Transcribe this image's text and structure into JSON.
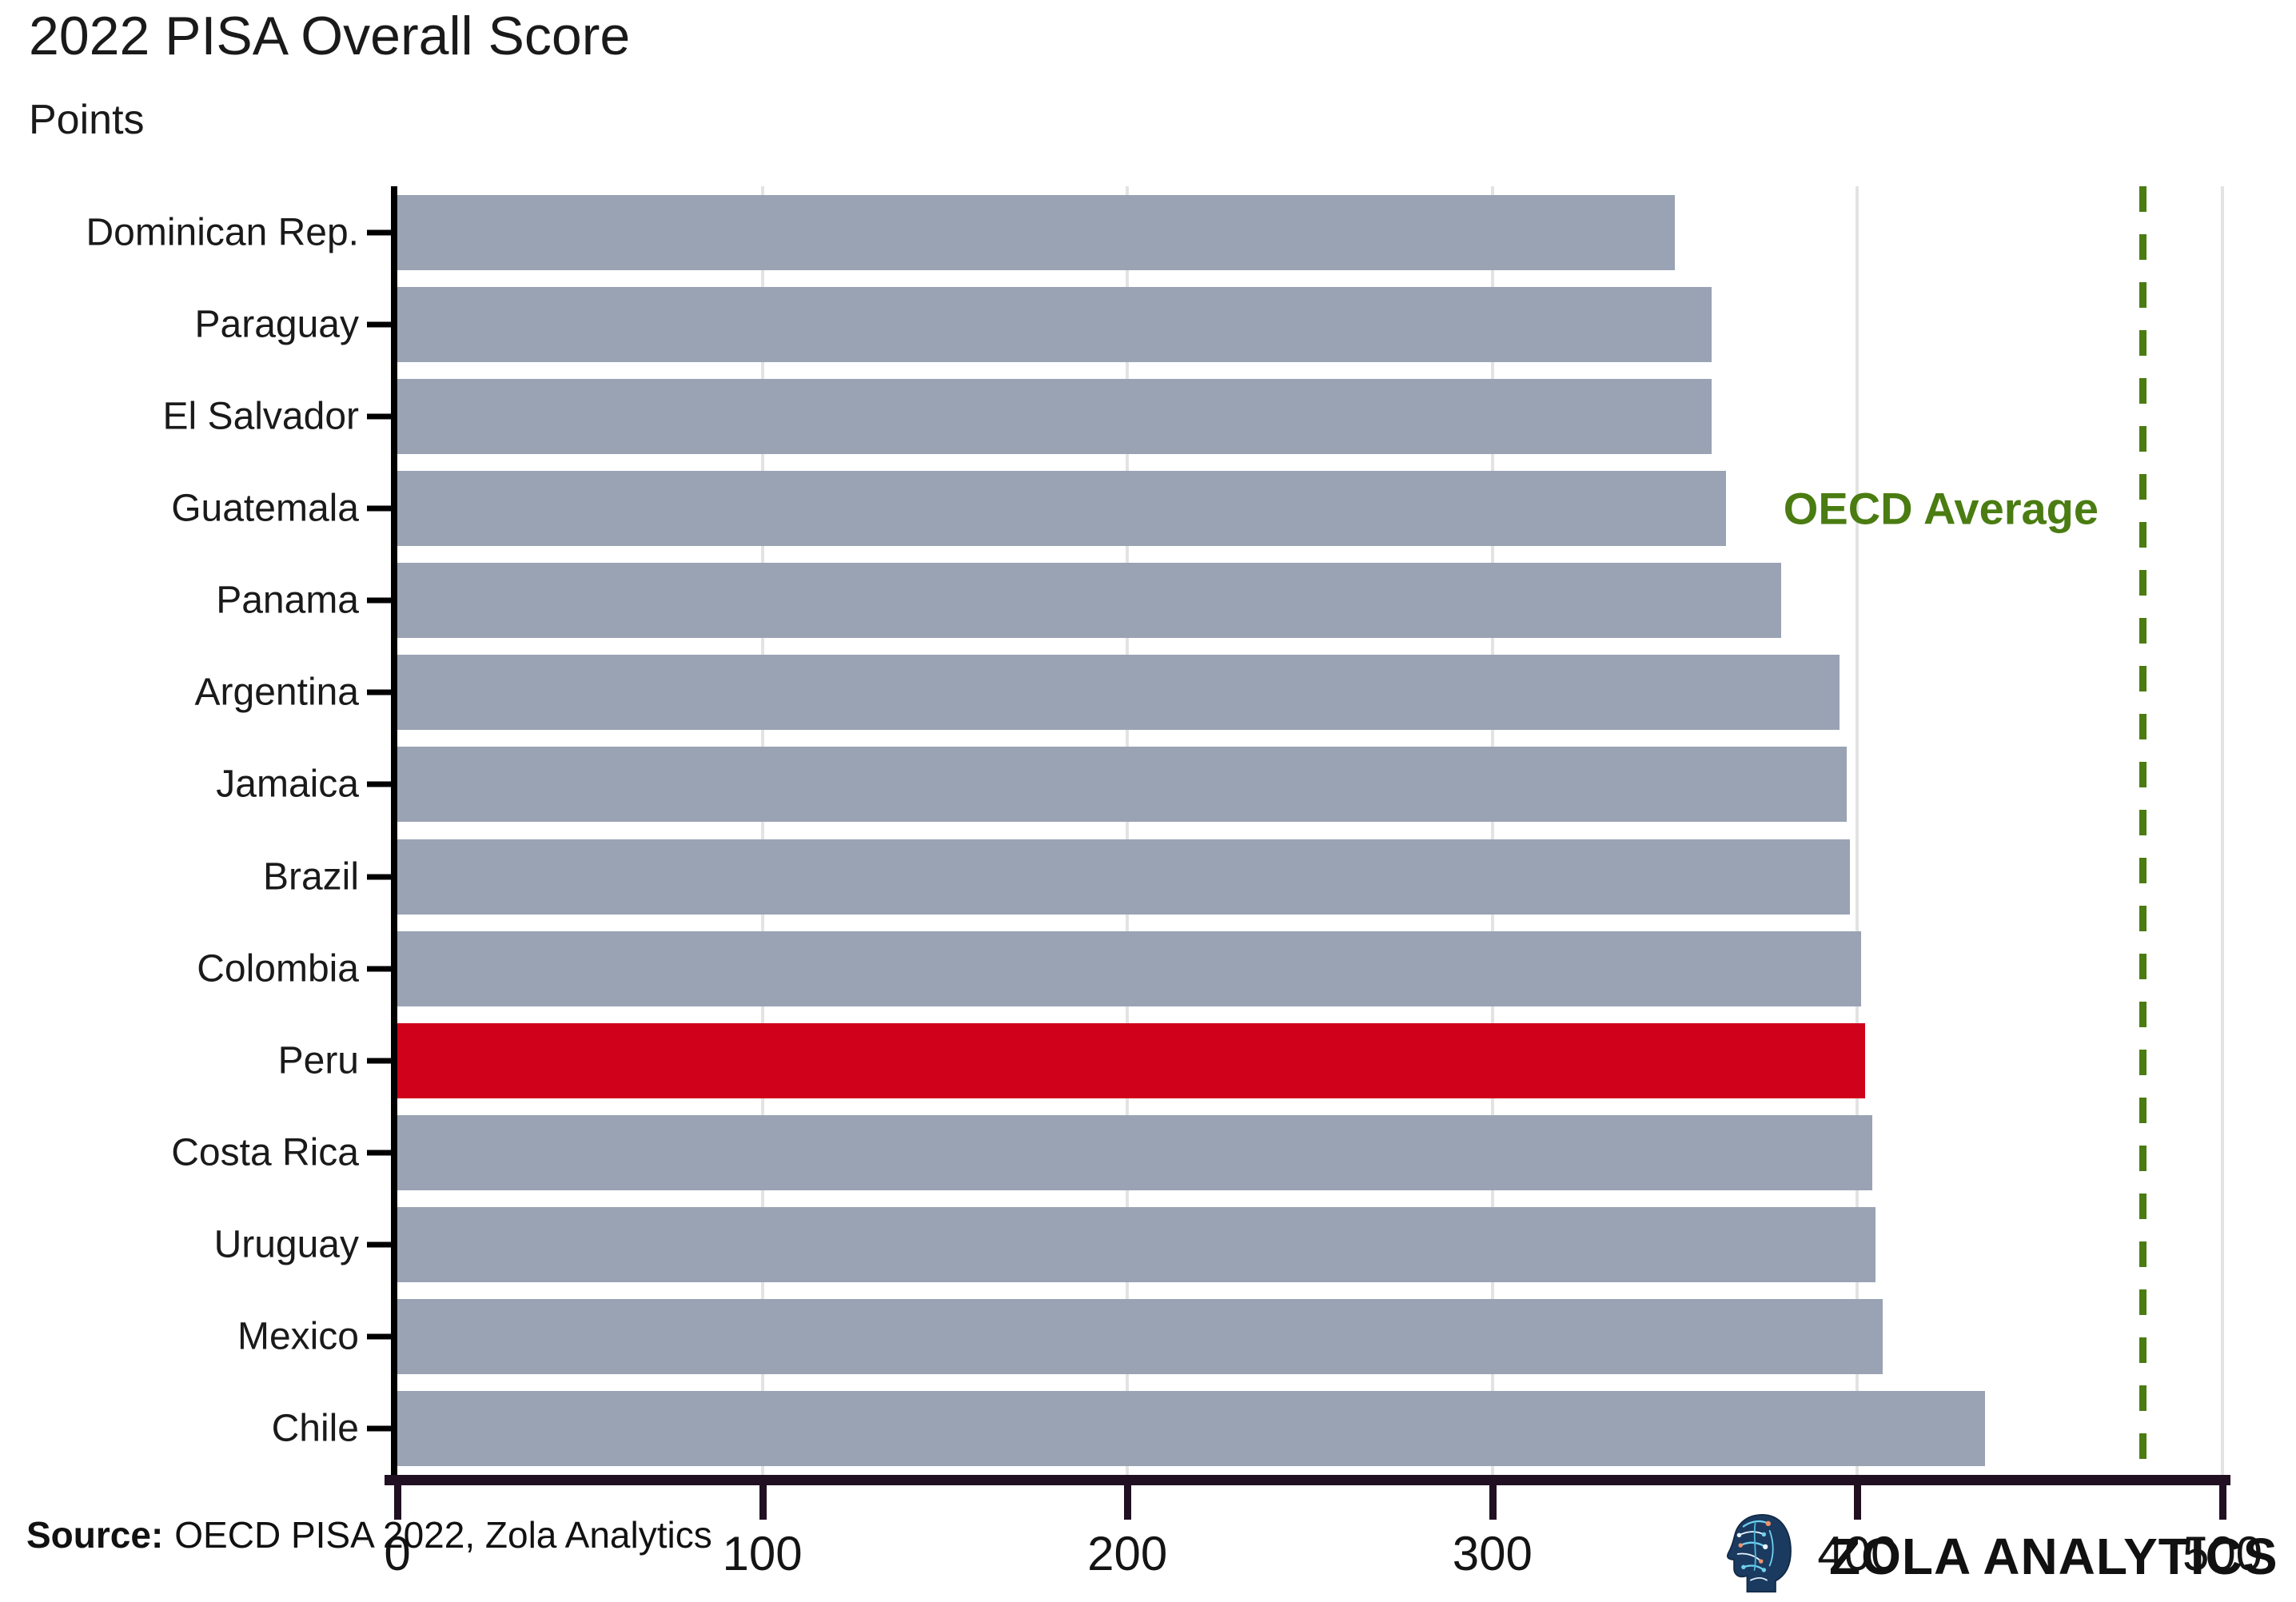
{
  "title": "2022 PISA Overall Score",
  "subtitle": "Points",
  "source": {
    "label": "Source:",
    "text": "OECD PISA 2022, Zola Analytics"
  },
  "brand": {
    "name": "ZOLA ANALYTICS",
    "logo": "circuit-head-icon"
  },
  "chart_data": {
    "type": "bar",
    "orientation": "horizontal",
    "title": "2022 PISA Overall Score",
    "xlabel": "",
    "ylabel": "Points",
    "categories": [
      "Dominican Rep.",
      "Paraguay",
      "El Salvador",
      "Guatemala",
      "Panama",
      "Argentina",
      "Jamaica",
      "Brazil",
      "Colombia",
      "Peru",
      "Costa Rica",
      "Uruguay",
      "Mexico",
      "Chile"
    ],
    "values": [
      350,
      360,
      360,
      364,
      379,
      395,
      397,
      398,
      401,
      402,
      404,
      405,
      407,
      435
    ],
    "highlight_category": "Peru",
    "reference_line": {
      "label": "OECD Average",
      "value": 478
    },
    "xlim": [
      0,
      500
    ],
    "x_ticks": [
      0,
      100,
      200,
      300,
      400,
      500
    ],
    "grid": "vertical",
    "legend": "none",
    "colors": {
      "bar": "#99a3b4",
      "highlight": "#d0021b",
      "reference": "#4a7c12",
      "axis": "#201022",
      "gridline": "#e3e3e3",
      "text": "#1a1a1a"
    }
  }
}
